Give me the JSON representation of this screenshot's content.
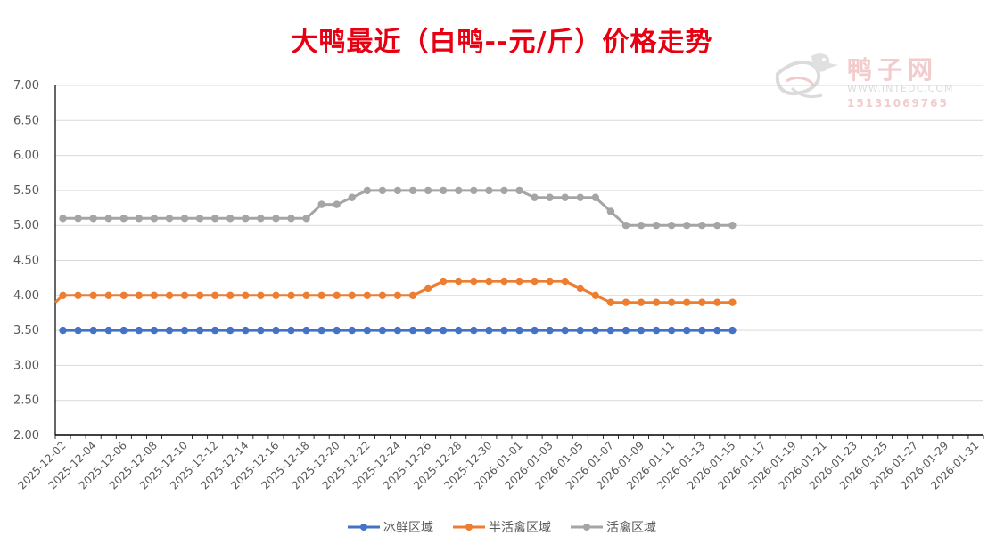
{
  "chart_data": {
    "type": "line",
    "title": "大鸭最近（白鸭--元/斤）价格走势",
    "xlabel": "",
    "ylabel": "",
    "ylim": [
      2.0,
      7.0
    ],
    "y_ticks": [
      "2.00",
      "2.50",
      "3.00",
      "3.50",
      "4.00",
      "4.50",
      "5.00",
      "5.50",
      "6.00",
      "6.50",
      "7.00"
    ],
    "x_range": [
      "2025-12-02",
      "2026-01-31"
    ],
    "x_tick_labels": [
      "2025-12-02",
      "2025-12-04",
      "2025-12-06",
      "2025-12-08",
      "2025-12-10",
      "2025-12-12",
      "2025-12-14",
      "2025-12-16",
      "2025-12-18",
      "2025-12-20",
      "2025-12-22",
      "2025-12-24",
      "2025-12-26",
      "2025-12-28",
      "2025-12-30",
      "2026-01-01",
      "2026-01-03",
      "2026-01-05",
      "2026-01-07",
      "2026-01-09",
      "2026-01-11",
      "2026-01-13",
      "2026-01-15",
      "2026-01-17",
      "2026-01-19",
      "2026-01-21",
      "2026-01-23",
      "2026-01-25",
      "2026-01-27",
      "2026-01-29",
      "2026-01-31"
    ],
    "x": [
      "2025-12-02",
      "2025-12-03",
      "2025-12-04",
      "2025-12-05",
      "2025-12-06",
      "2025-12-07",
      "2025-12-08",
      "2025-12-09",
      "2025-12-10",
      "2025-12-11",
      "2025-12-12",
      "2025-12-13",
      "2025-12-14",
      "2025-12-15",
      "2025-12-16",
      "2025-12-17",
      "2025-12-18",
      "2025-12-19",
      "2025-12-20",
      "2025-12-21",
      "2025-12-22",
      "2025-12-23",
      "2025-12-24",
      "2025-12-25",
      "2025-12-26",
      "2025-12-27",
      "2025-12-28",
      "2025-12-29",
      "2025-12-30",
      "2025-12-31",
      "2026-01-01",
      "2026-01-02",
      "2026-01-03",
      "2026-01-04",
      "2026-01-05",
      "2026-01-06",
      "2026-01-07",
      "2026-01-08",
      "2026-01-09",
      "2026-01-10",
      "2026-01-11",
      "2026-01-12",
      "2026-01-13",
      "2026-01-14",
      "2026-01-15"
    ],
    "series": [
      {
        "name": "冰鲜区域",
        "color": "#4472c4",
        "values": [
          3.5,
          3.5,
          3.5,
          3.5,
          3.5,
          3.5,
          3.5,
          3.5,
          3.5,
          3.5,
          3.5,
          3.5,
          3.5,
          3.5,
          3.5,
          3.5,
          3.5,
          3.5,
          3.5,
          3.5,
          3.5,
          3.5,
          3.5,
          3.5,
          3.5,
          3.5,
          3.5,
          3.5,
          3.5,
          3.5,
          3.5,
          3.5,
          3.5,
          3.5,
          3.5,
          3.5,
          3.5,
          3.5,
          3.5,
          3.5,
          3.5,
          3.5,
          3.5,
          3.5,
          3.5
        ]
      },
      {
        "name": "半活禽区域",
        "color": "#ed7d31",
        "start_value": 3.9,
        "values": [
          4.0,
          4.0,
          4.0,
          4.0,
          4.0,
          4.0,
          4.0,
          4.0,
          4.0,
          4.0,
          4.0,
          4.0,
          4.0,
          4.0,
          4.0,
          4.0,
          4.0,
          4.0,
          4.0,
          4.0,
          4.0,
          4.0,
          4.0,
          4.0,
          4.1,
          4.2,
          4.2,
          4.2,
          4.2,
          4.2,
          4.2,
          4.2,
          4.2,
          4.2,
          4.1,
          4.0,
          3.9,
          3.9,
          3.9,
          3.9,
          3.9,
          3.9,
          3.9,
          3.9,
          3.9
        ]
      },
      {
        "name": "活禽区域",
        "color": "#a5a5a5",
        "values": [
          5.1,
          5.1,
          5.1,
          5.1,
          5.1,
          5.1,
          5.1,
          5.1,
          5.1,
          5.1,
          5.1,
          5.1,
          5.1,
          5.1,
          5.1,
          5.1,
          5.1,
          5.3,
          5.3,
          5.4,
          5.5,
          5.5,
          5.5,
          5.5,
          5.5,
          5.5,
          5.5,
          5.5,
          5.5,
          5.5,
          5.5,
          5.4,
          5.4,
          5.4,
          5.4,
          5.4,
          5.2,
          5.0,
          5.0,
          5.0,
          5.0,
          5.0,
          5.0,
          5.0,
          5.0
        ]
      }
    ],
    "grid": true,
    "legend_position": "bottom"
  },
  "watermark": {
    "name": "鸭子网",
    "url": "WWW.INTEDC.COM",
    "phone": "15131069765"
  },
  "colors": {
    "title": "#e60012",
    "grid": "#d9d9d9",
    "axis": "#000000"
  }
}
